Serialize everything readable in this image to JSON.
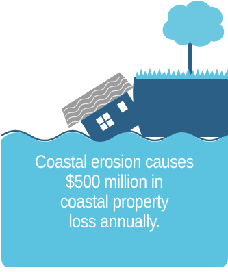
{
  "illustration": {
    "subject": "house sliding off an eroding cliff into the sea",
    "icons": [
      "tree-icon",
      "house-icon",
      "cliff-icon",
      "water-icon"
    ],
    "colors": {
      "water": "#5bc3df",
      "water_border": "#2c5f86",
      "cliff": "#2c5f86",
      "grass": "#5bc3df",
      "tree": "#6cc7e1",
      "trunk": "#2c5f86",
      "roof": "#9c9c9c",
      "house": "#2c5f86",
      "text": "#ffffff"
    }
  },
  "caption": {
    "line1": "Coastal erosion causes",
    "line2": "$500 million in",
    "line3": "coastal property",
    "line4": "loss annually."
  }
}
